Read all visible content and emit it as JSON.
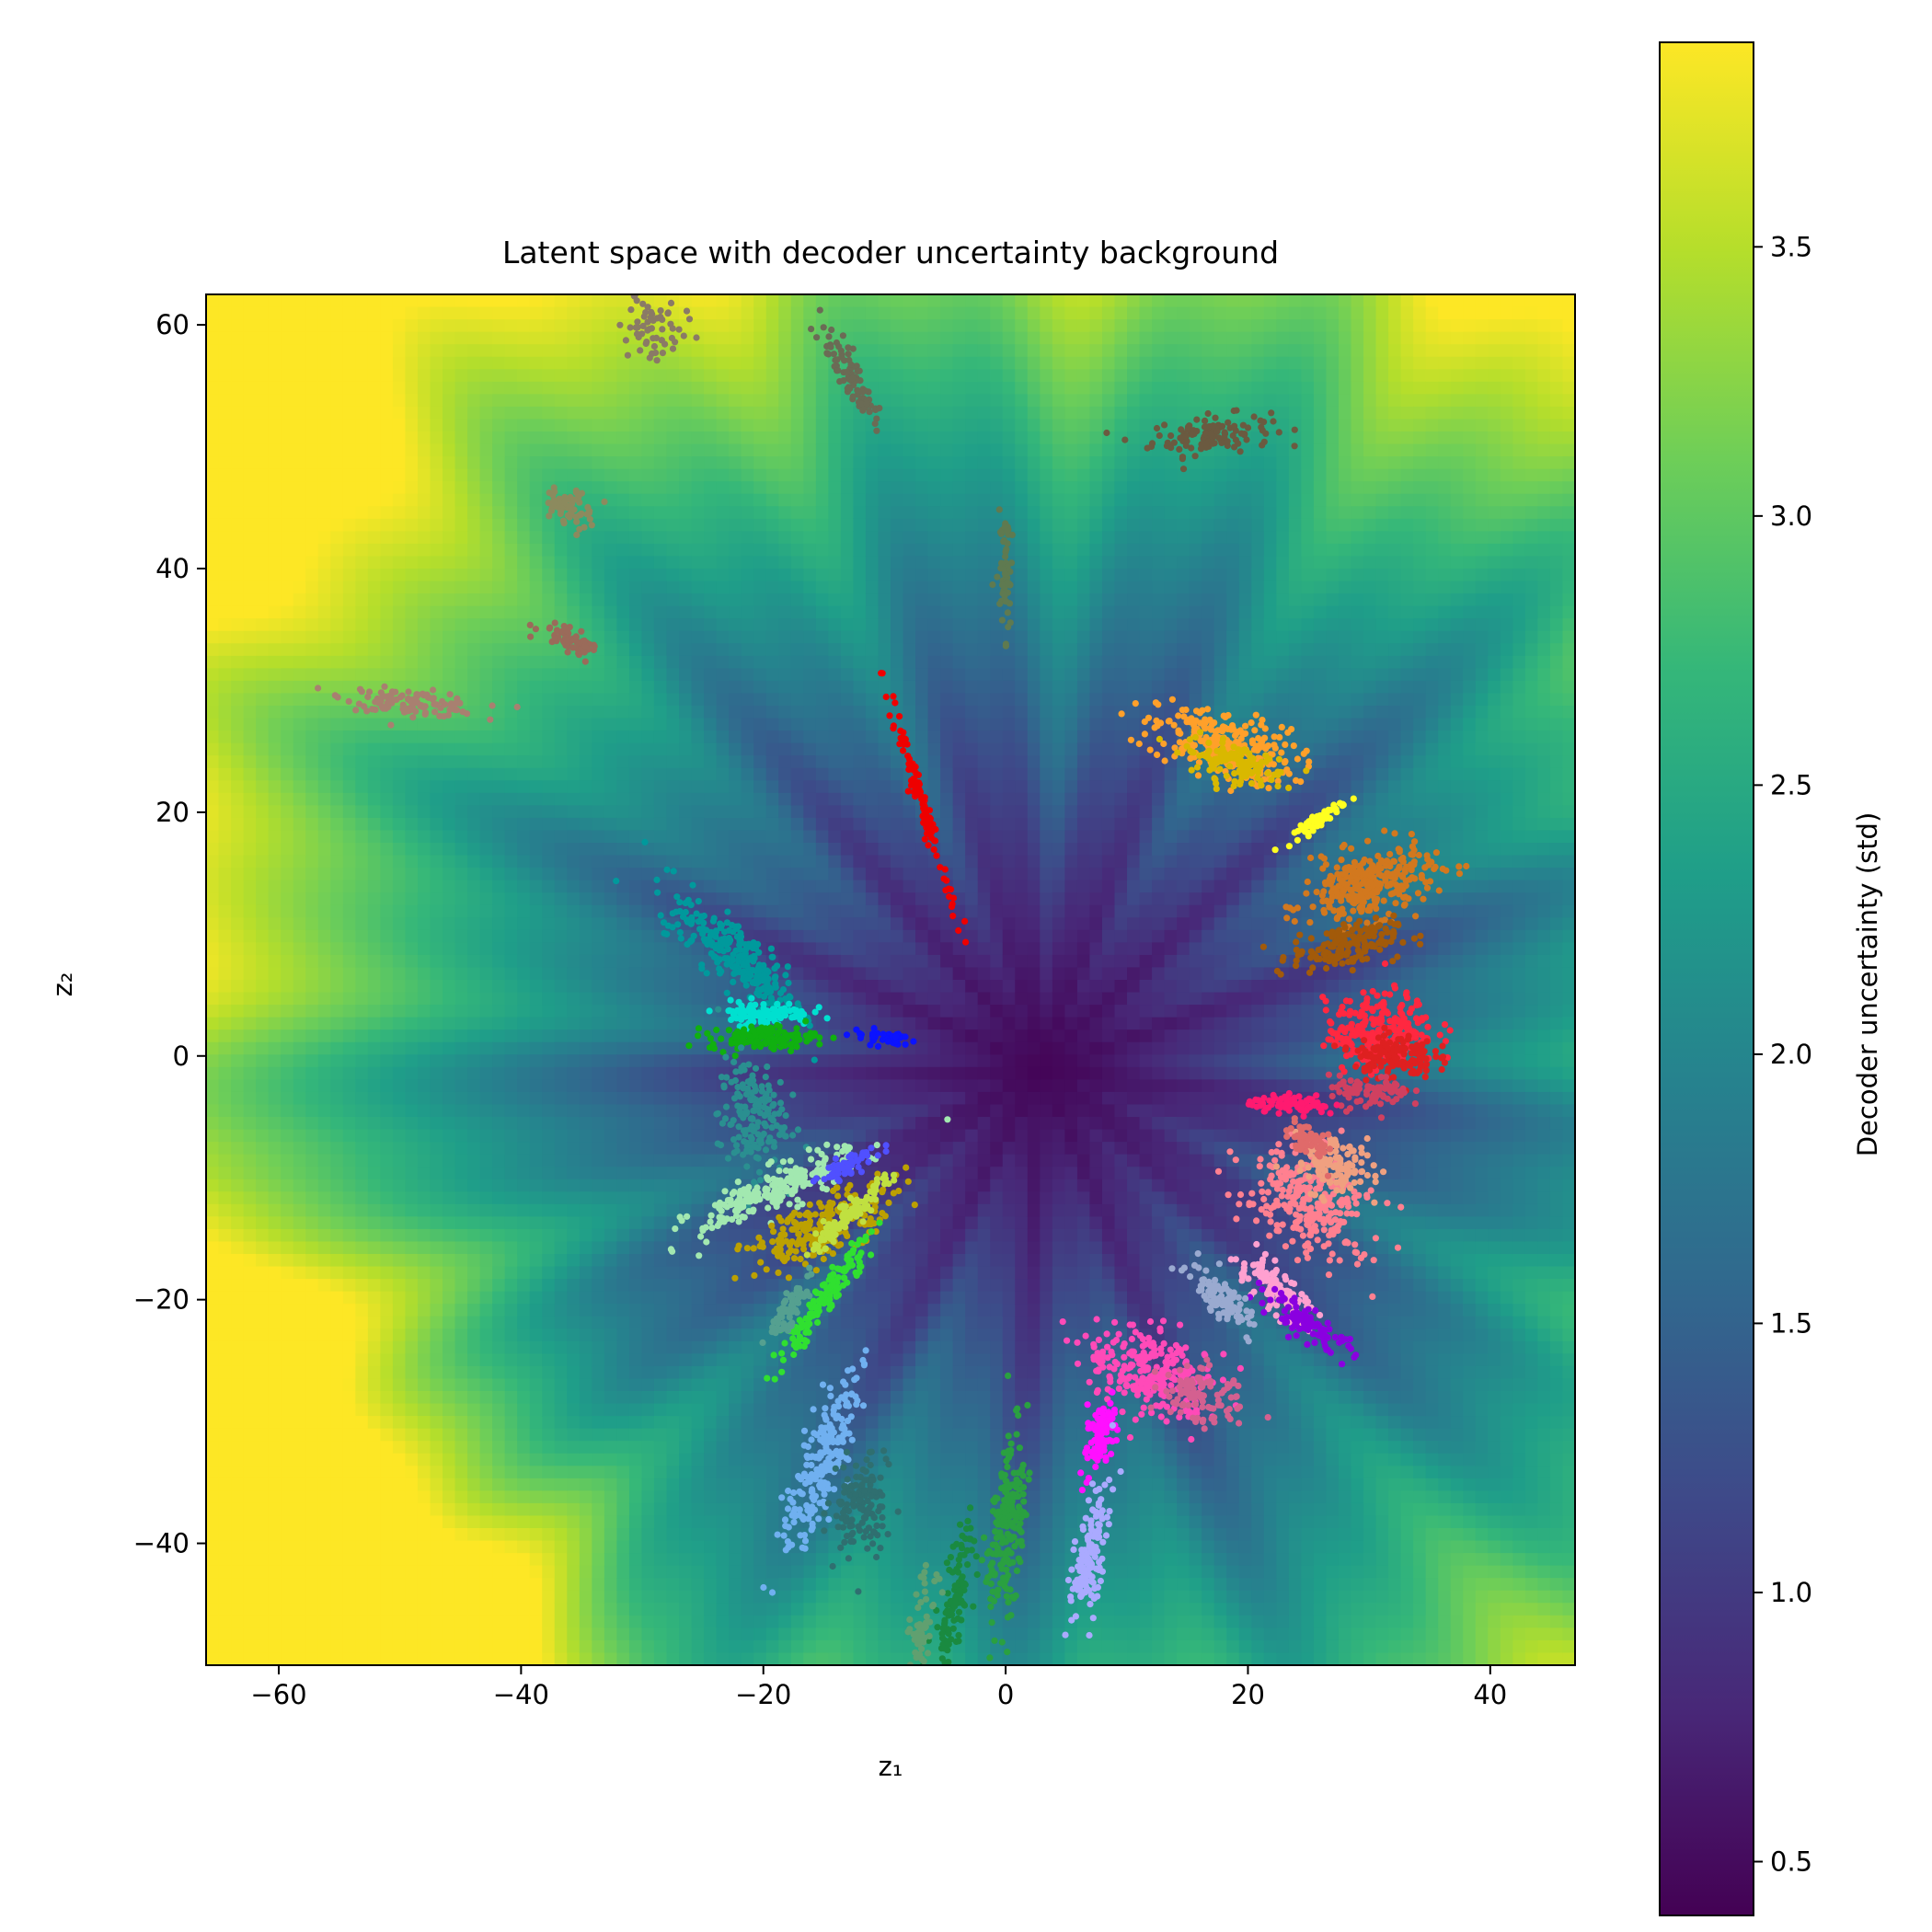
{
  "chart_data": {
    "type": "scatter",
    "title": "Latent space with decoder uncertainty background",
    "xlabel": "z₁",
    "ylabel": "z₂",
    "xlim": [
      -66,
      47
    ],
    "ylim": [
      -50,
      62.5
    ],
    "xticks": [
      -60,
      -40,
      -20,
      0,
      20,
      40
    ],
    "yticks": [
      -40,
      -20,
      0,
      20,
      40,
      60
    ],
    "grid": false,
    "background": {
      "type": "heatmap",
      "colormap": "viridis",
      "description_of_field": "decoder uncertainty std, low near origin, rising radially with streaks",
      "center": [
        3,
        -1
      ]
    },
    "colorbar": {
      "label": "Decoder uncertainty (std)",
      "range": [
        0.4,
        3.88
      ],
      "ticks": [
        0.5,
        1.0,
        1.5,
        2.0,
        2.5,
        3.0,
        3.5
      ]
    },
    "clusters": [
      {
        "color": "#8a7a66",
        "center": [
          -29,
          60
        ],
        "spread": [
          2.5,
          2.5
        ],
        "angle": 80,
        "n": 60
      },
      {
        "color": "#6b6b55",
        "center": [
          -13,
          56
        ],
        "spread": [
          4.5,
          1.0
        ],
        "angle": -60,
        "n": 90
      },
      {
        "color": "#6b5a40",
        "center": [
          17,
          51
        ],
        "spread": [
          4.5,
          1.4
        ],
        "angle": 5,
        "n": 120
      },
      {
        "color": "#8c8a5e",
        "center": [
          -36,
          45
        ],
        "spread": [
          1.5,
          1.6
        ],
        "angle": 60,
        "n": 60
      },
      {
        "color": "#5f7a50",
        "center": [
          0,
          40
        ],
        "spread": [
          5.5,
          0.6
        ],
        "angle": 90,
        "n": 60
      },
      {
        "color": "#9a6b5a",
        "center": [
          -36,
          34
        ],
        "spread": [
          2.4,
          0.9
        ],
        "angle": -30,
        "n": 60
      },
      {
        "color": "#a88070",
        "center": [
          -49,
          29
        ],
        "spread": [
          5.0,
          0.9
        ],
        "angle": -5,
        "n": 110
      },
      {
        "color": "#ee0000",
        "center": [
          -7,
          21
        ],
        "spread": [
          9.5,
          0.5
        ],
        "angle": -73,
        "n": 110
      },
      {
        "color": "#ffa02a",
        "center": [
          18,
          25.5
        ],
        "spread": [
          5.5,
          2.4
        ],
        "angle": -15,
        "n": 260
      },
      {
        "color": "#d9b800",
        "center": [
          19,
          24
        ],
        "spread": [
          4.0,
          1.4
        ],
        "angle": -15,
        "n": 120
      },
      {
        "color": "#ffff20",
        "center": [
          26,
          19.5
        ],
        "spread": [
          2.2,
          0.4
        ],
        "angle": 35,
        "n": 60
      },
      {
        "color": "#d2781e",
        "center": [
          30,
          14
        ],
        "spread": [
          5.0,
          2.5
        ],
        "angle": 15,
        "n": 300
      },
      {
        "color": "#a25a0a",
        "center": [
          28,
          9
        ],
        "spread": [
          4.0,
          1.6
        ],
        "angle": 10,
        "n": 160
      },
      {
        "color": "#00999c",
        "center": [
          -22,
          8
        ],
        "spread": [
          6.5,
          2.0
        ],
        "angle": -40,
        "n": 260
      },
      {
        "color": "#00e0d0",
        "center": [
          -20,
          3.5
        ],
        "spread": [
          3.5,
          0.9
        ],
        "angle": 0,
        "n": 100
      },
      {
        "color": "#10b010",
        "center": [
          -20,
          1.5
        ],
        "spread": [
          4.0,
          0.9
        ],
        "angle": 0,
        "n": 130
      },
      {
        "color": "#2a8f90",
        "center": [
          -21,
          -5
        ],
        "spread": [
          2.5,
          4.5
        ],
        "angle": 0,
        "n": 170
      },
      {
        "color": "#0b13ff",
        "center": [
          -10,
          1.5
        ],
        "spread": [
          2.5,
          0.6
        ],
        "angle": -5,
        "n": 40
      },
      {
        "color": "#ff2840",
        "center": [
          31,
          2
        ],
        "spread": [
          4.0,
          2.8
        ],
        "angle": 5,
        "n": 260
      },
      {
        "color": "#de2020",
        "center": [
          32,
          0
        ],
        "spread": [
          3.0,
          1.7
        ],
        "angle": 0,
        "n": 140
      },
      {
        "color": "#d04060",
        "center": [
          30,
          -3
        ],
        "spread": [
          3.0,
          1.2
        ],
        "angle": 0,
        "n": 80
      },
      {
        "color": "#ff1a70",
        "center": [
          24,
          -4
        ],
        "spread": [
          3.5,
          0.6
        ],
        "angle": -5,
        "n": 80
      },
      {
        "color": "#ff8090",
        "center": [
          25,
          -12
        ],
        "spread": [
          5.0,
          3.5
        ],
        "angle": -35,
        "n": 280
      },
      {
        "color": "#f0a080",
        "center": [
          27,
          -9
        ],
        "spread": [
          3.0,
          2.2
        ],
        "angle": -30,
        "n": 120
      },
      {
        "color": "#e06a6a",
        "center": [
          25,
          -7
        ],
        "spread": [
          2.0,
          1.0
        ],
        "angle": -30,
        "n": 60
      },
      {
        "color": "#a2e8b0",
        "center": [
          -19,
          -11
        ],
        "spread": [
          6.5,
          1.5
        ],
        "angle": 25,
        "n": 220
      },
      {
        "color": "#5050ff",
        "center": [
          -13,
          -9
        ],
        "spread": [
          2.5,
          0.7
        ],
        "angle": 25,
        "n": 60
      },
      {
        "color": "#bca000",
        "center": [
          -15,
          -14
        ],
        "spread": [
          6.0,
          2.0
        ],
        "angle": 25,
        "n": 220
      },
      {
        "color": "#c0e040",
        "center": [
          -13,
          -13
        ],
        "spread": [
          4.0,
          0.8
        ],
        "angle": 45,
        "n": 100
      },
      {
        "color": "#30e030",
        "center": [
          -15,
          -20
        ],
        "spread": [
          6.0,
          0.9
        ],
        "angle": 55,
        "n": 140
      },
      {
        "color": "#55a090",
        "center": [
          -18,
          -21
        ],
        "spread": [
          3.0,
          0.8
        ],
        "angle": 55,
        "n": 60
      },
      {
        "color": "#ffa0d0",
        "center": [
          22,
          -19
        ],
        "spread": [
          4.0,
          1.2
        ],
        "angle": -40,
        "n": 120
      },
      {
        "color": "#8a00e0",
        "center": [
          25,
          -22
        ],
        "spread": [
          4.0,
          1.0
        ],
        "angle": -35,
        "n": 100
      },
      {
        "color": "#9aaad0",
        "center": [
          18,
          -20
        ],
        "spread": [
          3.5,
          1.3
        ],
        "angle": -40,
        "n": 100
      },
      {
        "color": "#ff4ab8",
        "center": [
          12,
          -26
        ],
        "spread": [
          5.0,
          3.0
        ],
        "angle": -20,
        "n": 260
      },
      {
        "color": "#d46090",
        "center": [
          16,
          -28
        ],
        "spread": [
          3.0,
          2.0
        ],
        "angle": -20,
        "n": 100
      },
      {
        "color": "#ff10ff",
        "center": [
          8,
          -31
        ],
        "spread": [
          3.0,
          1.0
        ],
        "angle": 75,
        "n": 100
      },
      {
        "color": "#aaaaff",
        "center": [
          7,
          -41
        ],
        "spread": [
          5.5,
          1.1
        ],
        "angle": 80,
        "n": 140
      },
      {
        "color": "#70b0f0",
        "center": [
          -15,
          -33
        ],
        "spread": [
          7.0,
          1.6
        ],
        "angle": 70,
        "n": 220
      },
      {
        "color": "#2f6f70",
        "center": [
          -12,
          -37
        ],
        "spread": [
          4.0,
          2.0
        ],
        "angle": 80,
        "n": 130
      },
      {
        "color": "#2aa040",
        "center": [
          0,
          -39
        ],
        "spread": [
          7.0,
          1.4
        ],
        "angle": 85,
        "n": 200
      },
      {
        "color": "#1a8a40",
        "center": [
          -4,
          -44
        ],
        "spread": [
          5.0,
          1.0
        ],
        "angle": 80,
        "n": 110
      },
      {
        "color": "#60a070",
        "center": [
          -7,
          -47
        ],
        "spread": [
          4.0,
          0.8
        ],
        "angle": 80,
        "n": 60
      }
    ]
  }
}
